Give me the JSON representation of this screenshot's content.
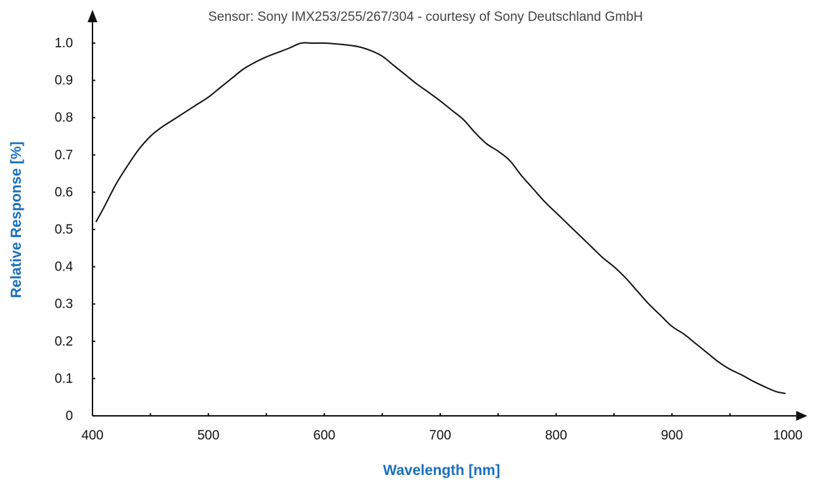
{
  "chart_data": {
    "type": "line",
    "title": "Sensor: Sony IMX253/255/267/304 - courtesy of Sony Deutschland GmbH",
    "xlabel": "Wavelength [nm]",
    "ylabel": "Relative Response [%]",
    "xlim": [
      400,
      1000
    ],
    "ylim": [
      0,
      1.0
    ],
    "x_ticks": [
      400,
      500,
      600,
      700,
      800,
      900,
      1000
    ],
    "y_ticks": [
      0,
      0.1,
      0.2,
      0.3,
      0.4,
      0.5,
      0.6,
      0.7,
      0.8,
      0.9,
      1.0
    ],
    "x_tick_labels": [
      "400",
      "500",
      "600",
      "700",
      "800",
      "900",
      "1000"
    ],
    "y_tick_labels": [
      "0",
      "0.1",
      "0.2",
      "0.3",
      "0.4",
      "0.5",
      "0.6",
      "0.7",
      "0.8",
      "0.9",
      "1.0"
    ],
    "grid": false,
    "legend": "none",
    "colors": {
      "line": "#111111",
      "axis": "#111111",
      "axis_label": "#1a6fc0",
      "title": "#444444"
    },
    "series": [
      {
        "x": [
          403,
          410,
          420,
          430,
          440,
          450,
          460,
          470,
          480,
          490,
          500,
          510,
          520,
          530,
          540,
          550,
          560,
          570,
          580,
          590,
          600,
          610,
          620,
          630,
          640,
          650,
          660,
          670,
          680,
          690,
          700,
          710,
          720,
          730,
          740,
          750,
          760,
          770,
          780,
          790,
          800,
          810,
          820,
          830,
          840,
          850,
          860,
          870,
          880,
          890,
          900,
          910,
          920,
          930,
          940,
          950,
          960,
          970,
          980,
          990,
          998
        ],
        "y": [
          0.52,
          0.56,
          0.62,
          0.67,
          0.715,
          0.75,
          0.775,
          0.795,
          0.815,
          0.835,
          0.855,
          0.88,
          0.905,
          0.93,
          0.948,
          0.963,
          0.975,
          0.987,
          1.0,
          1.0,
          1.0,
          0.998,
          0.995,
          0.99,
          0.98,
          0.965,
          0.94,
          0.915,
          0.89,
          0.868,
          0.845,
          0.82,
          0.795,
          0.76,
          0.73,
          0.71,
          0.685,
          0.645,
          0.61,
          0.575,
          0.545,
          0.515,
          0.485,
          0.455,
          0.425,
          0.4,
          0.37,
          0.335,
          0.3,
          0.27,
          0.24,
          0.22,
          0.195,
          0.17,
          0.145,
          0.125,
          0.11,
          0.093,
          0.078,
          0.065,
          0.06
        ]
      }
    ]
  }
}
